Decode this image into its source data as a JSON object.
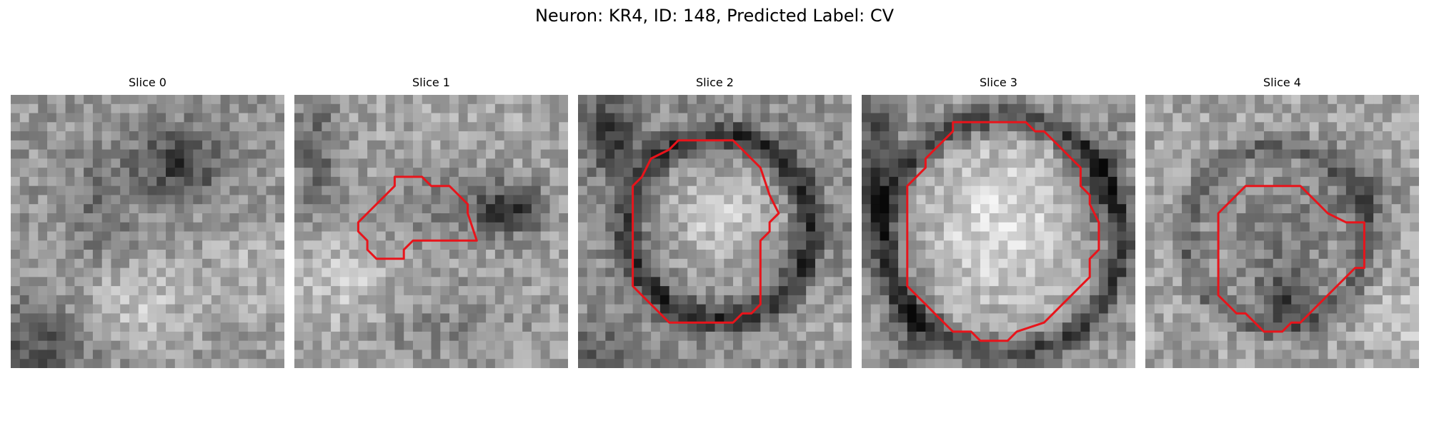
{
  "figure": {
    "title": "Neuron: KR4, ID: 148, Predicted Label: CV",
    "contour_color": "#e8141b",
    "colormap": "gray"
  },
  "panels": [
    {
      "title": "Slice 0",
      "has_contour": false
    },
    {
      "title": "Slice 1",
      "has_contour": true
    },
    {
      "title": "Slice 2",
      "has_contour": true
    },
    {
      "title": "Slice 3",
      "has_contour": true
    },
    {
      "title": "Slice 4",
      "has_contour": true
    }
  ]
}
